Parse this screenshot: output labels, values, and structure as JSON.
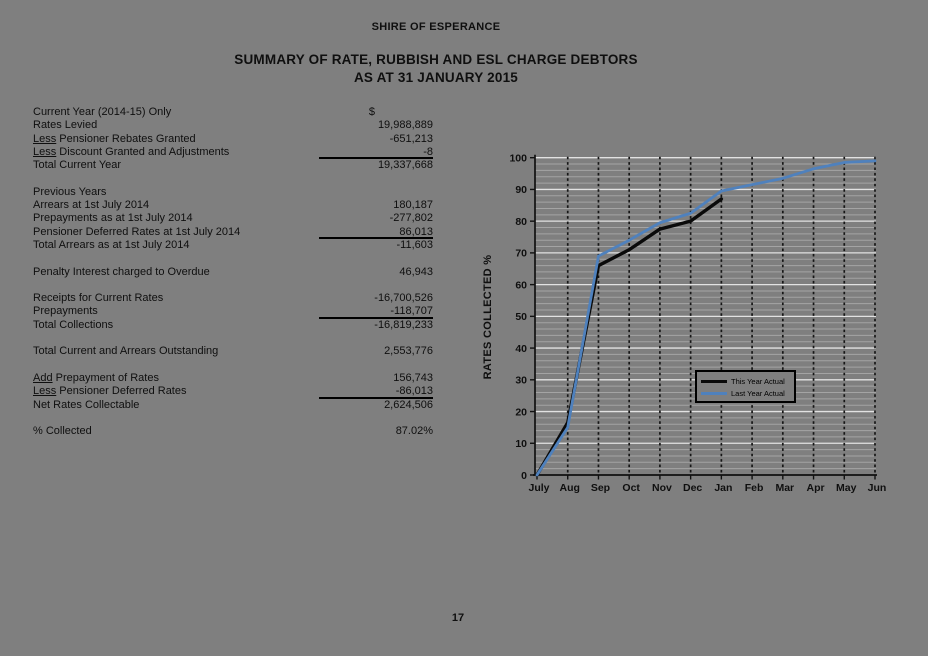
{
  "page": {
    "background": "#7f7f7f",
    "text_color": "#0f0f0f"
  },
  "header": {
    "org": "SHIRE OF ESPERANCE",
    "title_line1": "SUMMARY OF RATE, RUBBISH AND ESL CHARGE DEBTORS",
    "title_line2": "AS AT 31 JANUARY 2015"
  },
  "table": {
    "rows": [
      {
        "label": "Current Year (2014-15) Only",
        "value": "$",
        "value_header": true
      },
      {
        "label": "Rates Levied",
        "value": "19,988,889"
      },
      {
        "prefix": "Less",
        "label": " Pensioner Rebates Granted",
        "value": "-651,213"
      },
      {
        "prefix": "Less",
        "label": " Discount Granted and Adjustments",
        "value": "-8",
        "rule_below": true
      },
      {
        "label": "Total Current Year",
        "value": "19,337,668"
      },
      {
        "blank": true
      },
      {
        "label": "Previous Years",
        "value": ""
      },
      {
        "label": "Arrears at 1st July 2014",
        "value": "180,187"
      },
      {
        "label": "Prepayments as at 1st July 2014",
        "value": "-277,802"
      },
      {
        "label": "Pensioner Deferred Rates at 1st July 2014",
        "value": "86,013",
        "rule_below": true
      },
      {
        "label": "Total Arrears as at 1st July 2014",
        "value": "-11,603"
      },
      {
        "blank": true
      },
      {
        "label": "Penalty Interest charged to Overdue",
        "value": "46,943"
      },
      {
        "blank": true
      },
      {
        "label": "Receipts for Current Rates",
        "value": "-16,700,526"
      },
      {
        "label": "Prepayments",
        "value": "-118,707",
        "rule_below": true
      },
      {
        "label": "Total Collections",
        "value": "-16,819,233"
      },
      {
        "blank": true
      },
      {
        "label": "Total Current and Arrears Outstanding",
        "value": "2,553,776"
      },
      {
        "blank": true
      },
      {
        "prefix": "Add",
        "label": " Prepayment of Rates",
        "value": "156,743"
      },
      {
        "prefix": "Less",
        "label": " Pensioner Deferred Rates",
        "value": "-86,013",
        "rule_below": true
      },
      {
        "label": "Net Rates Collectable",
        "value": "2,624,506"
      },
      {
        "blank": true
      },
      {
        "label": "% Collected",
        "value": "87.02%"
      }
    ]
  },
  "chart_data": {
    "type": "line",
    "x": [
      "July",
      "Aug",
      "Sep",
      "Oct",
      "Nov",
      "Dec",
      "Jan",
      "Feb",
      "Mar",
      "Apr",
      "May",
      "Jun"
    ],
    "series": [
      {
        "name": "This Year Actual",
        "color": "#0a0a0a",
        "values": [
          0,
          16.5,
          66,
          71,
          77.5,
          80,
          87
        ]
      },
      {
        "name": "Last Year Actual",
        "color": "#4f81bd",
        "values": [
          0,
          15,
          69,
          74,
          79.5,
          82.5,
          89.5,
          91.5,
          93.5,
          96.5,
          98.5,
          99
        ]
      }
    ],
    "title": "",
    "xlabel": "",
    "ylabel": "RATES COLLECTED %",
    "ylim": [
      0,
      100
    ],
    "y_major_step": 10,
    "y_minor_step": 2,
    "grid": true,
    "legend_position": "inside-right",
    "colors": {
      "minor_grid": "#a4a4a4",
      "major_grid": "#e2e2e2",
      "axis": "#111111",
      "month_line": "#161616"
    }
  },
  "footer": {
    "page_number": "17"
  }
}
